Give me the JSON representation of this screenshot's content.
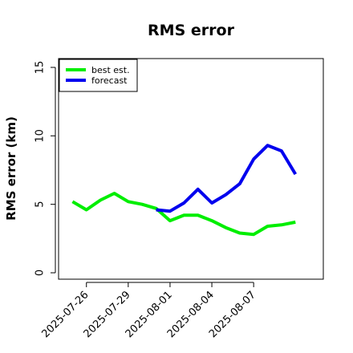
{
  "chart_data": {
    "type": "line",
    "title": "RMS error",
    "xlabel": "",
    "ylabel": "RMS error (km)",
    "ylim": [
      0,
      15
    ],
    "yticks": [
      0,
      5,
      10,
      15
    ],
    "xticks": [
      "2025-07-26",
      "2025-07-29",
      "2025-08-01",
      "2025-08-04",
      "2025-08-07"
    ],
    "xlim": [
      "2025-07-24",
      "2025-08-12"
    ],
    "grid": false,
    "legend_position": "top-left",
    "series": [
      {
        "name": "best est.",
        "color": "#00ee00",
        "x": [
          "2025-07-25",
          "2025-07-26",
          "2025-07-27",
          "2025-07-28",
          "2025-07-29",
          "2025-07-30",
          "2025-07-31",
          "2025-08-01",
          "2025-08-02",
          "2025-08-03",
          "2025-08-04",
          "2025-08-05",
          "2025-08-06",
          "2025-08-07",
          "2025-08-08",
          "2025-08-09",
          "2025-08-10"
        ],
        "values": [
          5.2,
          4.6,
          5.3,
          5.8,
          5.2,
          5.0,
          4.7,
          3.8,
          4.2,
          4.2,
          3.8,
          3.3,
          2.9,
          2.8,
          3.4,
          3.5,
          3.7
        ]
      },
      {
        "name": "forecast",
        "color": "#0000ee",
        "x": [
          "2025-07-31",
          "2025-08-01",
          "2025-08-02",
          "2025-08-03",
          "2025-08-04",
          "2025-08-05",
          "2025-08-06",
          "2025-08-07",
          "2025-08-08",
          "2025-08-09",
          "2025-08-10"
        ],
        "values": [
          4.6,
          4.5,
          5.1,
          6.1,
          5.1,
          5.7,
          6.5,
          8.3,
          9.3,
          8.9,
          7.2
        ]
      }
    ]
  }
}
